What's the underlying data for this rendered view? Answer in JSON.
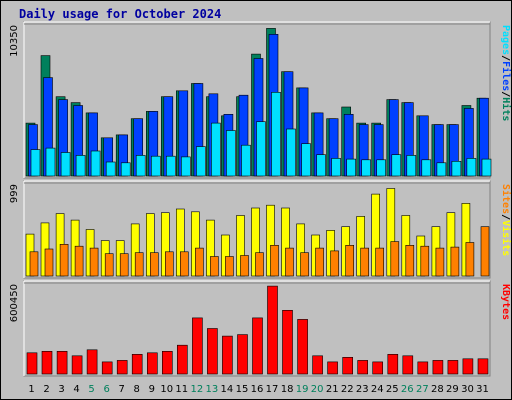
{
  "title": "Daily usage for October 2024",
  "colors": {
    "hits": "#00805c",
    "files": "#0040ff",
    "pages": "#00e0ff",
    "visits": "#ffff00",
    "sites": "#ff8000",
    "kbytes": "#ff0000",
    "weekend_day": "#00805c",
    "weekday": "#000000"
  },
  "chart_data": [
    {
      "type": "bar",
      "panel": "requests",
      "ymax_label": "10350",
      "right_label": [
        "Pages",
        "/",
        "Files",
        "/",
        "Hits"
      ],
      "categories": [
        "1",
        "2",
        "3",
        "4",
        "5",
        "6",
        "7",
        "8",
        "9",
        "10",
        "11",
        "12",
        "13",
        "14",
        "15",
        "16",
        "17",
        "18",
        "19",
        "20",
        "21",
        "22",
        "23",
        "24",
        "25",
        "26",
        "27",
        "28",
        "29",
        "30",
        "31"
      ],
      "ylim": [
        0,
        10350
      ],
      "series": [
        {
          "name": "Hits",
          "values": [
            3600,
            8200,
            5400,
            5000,
            4300,
            2600,
            2800,
            3900,
            4400,
            5400,
            5800,
            6300,
            5400,
            4100,
            5400,
            8300,
            10050,
            7100,
            6000,
            4300,
            3900,
            4700,
            3600,
            3600,
            5200,
            5000,
            4100,
            3500,
            3500,
            4800,
            5300
          ]
        },
        {
          "name": "Files",
          "values": [
            3500,
            6700,
            5200,
            4800,
            4300,
            2600,
            2800,
            3900,
            4400,
            5400,
            5800,
            6300,
            5600,
            4200,
            5500,
            8000,
            9650,
            7100,
            6000,
            4300,
            3900,
            4200,
            3500,
            3500,
            5200,
            5000,
            4100,
            3500,
            3500,
            4600,
            5300
          ]
        },
        {
          "name": "Pages",
          "values": [
            1800,
            1900,
            1600,
            1400,
            1700,
            950,
            900,
            1400,
            1350,
            1350,
            1300,
            2000,
            3600,
            3100,
            2100,
            3700,
            5700,
            3200,
            2200,
            1450,
            1200,
            1150,
            1100,
            1100,
            1450,
            1400,
            1100,
            900,
            1000,
            1200,
            1150
          ]
        }
      ]
    },
    {
      "type": "bar",
      "panel": "visitors",
      "ymax_label": "999",
      "right_label": [
        "Sites",
        "/",
        "Visits"
      ],
      "categories": [
        "1",
        "2",
        "3",
        "4",
        "5",
        "6",
        "7",
        "8",
        "9",
        "10",
        "11",
        "12",
        "13",
        "14",
        "15",
        "16",
        "17",
        "18",
        "19",
        "20",
        "21",
        "22",
        "23",
        "24",
        "25",
        "26",
        "27",
        "28",
        "29",
        "30",
        "31"
      ],
      "ylim": [
        0,
        999
      ],
      "series": [
        {
          "name": "Visits",
          "values": [
            450,
            570,
            670,
            600,
            500,
            380,
            380,
            560,
            670,
            680,
            720,
            690,
            600,
            440,
            650,
            730,
            760,
            730,
            560,
            440,
            490,
            530,
            640,
            880,
            940,
            650,
            430,
            530,
            680,
            780,
            0
          ]
        },
        {
          "name": "Sites",
          "values": [
            260,
            290,
            340,
            320,
            300,
            240,
            240,
            250,
            250,
            260,
            260,
            300,
            210,
            210,
            220,
            250,
            330,
            300,
            250,
            300,
            270,
            330,
            300,
            300,
            370,
            330,
            320,
            300,
            310,
            360,
            530
          ]
        }
      ]
    },
    {
      "type": "bar",
      "panel": "kbytes",
      "ymax_label": "600450",
      "right_label": [
        "KBytes"
      ],
      "categories": [
        "1",
        "2",
        "3",
        "4",
        "5",
        "6",
        "7",
        "8",
        "9",
        "10",
        "11",
        "12",
        "13",
        "14",
        "15",
        "16",
        "17",
        "18",
        "19",
        "20",
        "21",
        "22",
        "23",
        "24",
        "25",
        "26",
        "27",
        "28",
        "29",
        "30",
        "31"
      ],
      "ylim": [
        0,
        600450
      ],
      "series": [
        {
          "name": "KBytes",
          "values": [
            140000,
            150000,
            150000,
            120000,
            160000,
            80000,
            90000,
            130000,
            140000,
            150000,
            190000,
            370000,
            300000,
            250000,
            260000,
            370000,
            580000,
            420000,
            360000,
            120000,
            80000,
            110000,
            90000,
            80000,
            130000,
            120000,
            80000,
            90000,
            90000,
            100000,
            100000
          ]
        }
      ]
    }
  ],
  "weekend_days": [
    "5",
    "6",
    "12",
    "13",
    "19",
    "20",
    "26",
    "27"
  ]
}
